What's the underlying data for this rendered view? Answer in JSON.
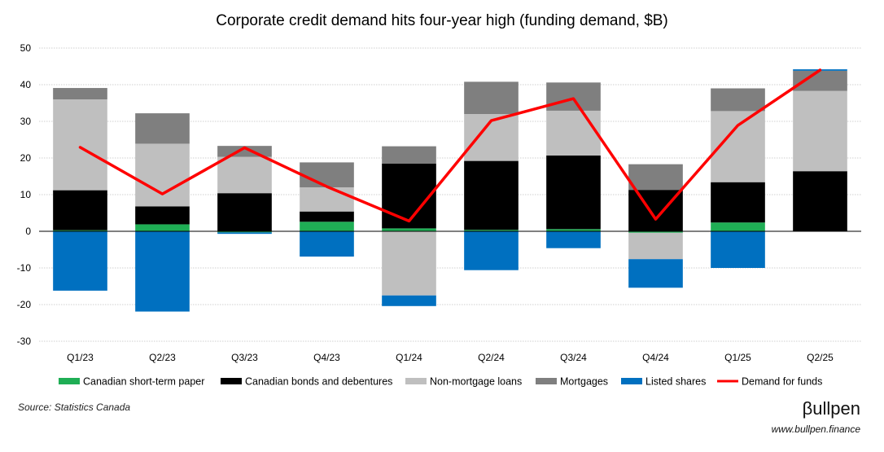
{
  "chart_data": {
    "type": "bar",
    "title": "Corporate credit demand hits four-year high (funding demand, $B)",
    "categories": [
      "Q1/23",
      "Q2/23",
      "Q3/23",
      "Q4/23",
      "Q1/24",
      "Q2/24",
      "Q3/24",
      "Q4/24",
      "Q1/25",
      "Q2/25"
    ],
    "ylim": [
      -30,
      50
    ],
    "yticks": [
      -30,
      -20,
      -10,
      0,
      10,
      20,
      30,
      40,
      50
    ],
    "grid": true,
    "legend_position": "bottom",
    "series": [
      {
        "name": "Canadian short-term paper",
        "color": "#1fae55",
        "values": [
          0.3,
          1.9,
          -0.3,
          2.6,
          0.8,
          0.4,
          0.6,
          -0.4,
          2.4,
          0
        ]
      },
      {
        "name": "Canadian bonds and debentures",
        "color": "#000000",
        "values": [
          10.9,
          4.9,
          10.4,
          2.8,
          17.7,
          18.8,
          20.1,
          11.3,
          11.0,
          16.4
        ]
      },
      {
        "name": "Non-mortgage loans",
        "color": "#bfbfbf",
        "values": [
          24.8,
          17.1,
          9.9,
          6.6,
          -17.5,
          12.8,
          12.2,
          -7.2,
          19.4,
          21.9
        ]
      },
      {
        "name": "Mortgages",
        "color": "#7f7f7f",
        "values": [
          3.1,
          8.3,
          3.0,
          6.8,
          4.7,
          8.8,
          7.7,
          7.0,
          6.2,
          5.5
        ]
      },
      {
        "name": "Listed shares",
        "color": "#0070c0",
        "values": [
          -16.2,
          -21.9,
          -0.4,
          -6.9,
          -2.9,
          -10.6,
          -4.6,
          -7.8,
          -10.0,
          0.4
        ]
      }
    ],
    "line_series": {
      "name": "Demand for funds",
      "color": "#ff0000",
      "values": [
        22.9,
        10.2,
        22.8,
        12.2,
        2.8,
        30.2,
        36.2,
        3.3,
        28.9,
        44.0
      ]
    }
  },
  "footer": {
    "source": "Source: Statistics Canada",
    "brand": "βullpen",
    "website": "www.bullpen.finance"
  }
}
